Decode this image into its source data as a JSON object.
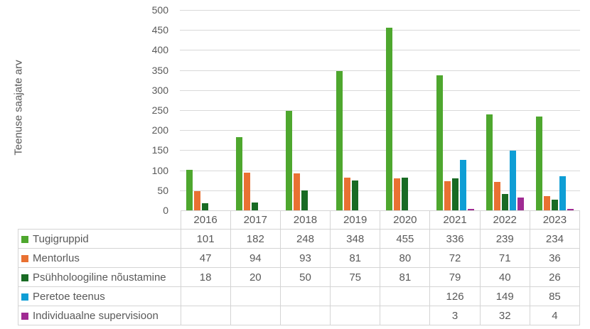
{
  "chart_data": {
    "type": "bar",
    "title": "",
    "xlabel": "",
    "ylabel": "Teenuse saajate arv",
    "categories": [
      "2016",
      "2017",
      "2018",
      "2019",
      "2020",
      "2021",
      "2022",
      "2023"
    ],
    "series": [
      {
        "name": "Tugigruppid",
        "color": "#4EA72E",
        "values": [
          101,
          182,
          248,
          348,
          455,
          336,
          239,
          234
        ]
      },
      {
        "name": "Mentorlus",
        "color": "#E97132",
        "values": [
          47,
          94,
          93,
          81,
          80,
          72,
          71,
          36
        ]
      },
      {
        "name": "Psühholoogiline nõustamine",
        "color": "#196B24",
        "values": [
          18,
          20,
          50,
          75,
          81,
          79,
          40,
          26
        ]
      },
      {
        "name": "Peretoe teenus",
        "color": "#0F9ED5",
        "values": [
          null,
          null,
          null,
          null,
          null,
          126,
          149,
          85
        ]
      },
      {
        "name": "Individuaalne supervisioon",
        "color": "#A02B93",
        "values": [
          null,
          null,
          null,
          null,
          null,
          3,
          32,
          4
        ]
      }
    ],
    "ylim": [
      0,
      500
    ],
    "ytick_step": 50,
    "grid": true,
    "legend_position": "data-table-left-column",
    "data_table": true
  },
  "colors": {
    "text": "#595959",
    "gridline": "#D9D9D9",
    "table_border": "#D4D4D4",
    "background": "#FFFFFF"
  }
}
